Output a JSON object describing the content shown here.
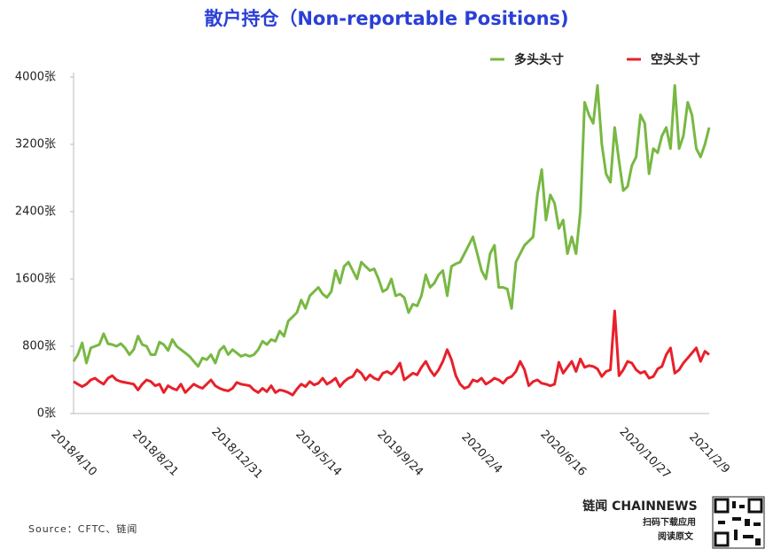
{
  "chart_data": {
    "type": "line",
    "title": "散户持仓（Non-reportable Positions)",
    "source": "Source：CFTC、链闻",
    "brand": {
      "name": "链闻 CHAINNEWS",
      "line1": "扫码下载应用",
      "line2": "阅读原文"
    },
    "categories": [
      "2018/4/10",
      null,
      null,
      null,
      null,
      null,
      null,
      null,
      null,
      null,
      null,
      null,
      null,
      null,
      null,
      null,
      null,
      null,
      null,
      "2018/8/21",
      null,
      null,
      null,
      null,
      null,
      null,
      null,
      null,
      null,
      null,
      null,
      null,
      null,
      null,
      null,
      null,
      null,
      null,
      "2018/12/31",
      null,
      null,
      null,
      null,
      null,
      null,
      null,
      null,
      null,
      null,
      null,
      null,
      null,
      null,
      null,
      null,
      null,
      null,
      "2019/5/14",
      null,
      null,
      null,
      null,
      null,
      null,
      null,
      null,
      null,
      null,
      null,
      null,
      null,
      null,
      null,
      null,
      null,
      null,
      "2019/9/24",
      null,
      null,
      null,
      null,
      null,
      null,
      null,
      null,
      null,
      null,
      null,
      null,
      null,
      null,
      null,
      null,
      null,
      null,
      "2020/2/4",
      null,
      null,
      null,
      null,
      null,
      null,
      null,
      null,
      null,
      null,
      null,
      null,
      null,
      null,
      null,
      null,
      null,
      null,
      "2020/6/16",
      null,
      null,
      null,
      null,
      null,
      null,
      null,
      null,
      null,
      null,
      null,
      null,
      null,
      null,
      null,
      null,
      null,
      null,
      "2020/10/27",
      null,
      null,
      null,
      null,
      null,
      null,
      null,
      null,
      null,
      null,
      null,
      null,
      null,
      null,
      "2021/2/9"
    ],
    "series": [
      {
        "name": "多头头寸",
        "color": "#78b843",
        "values": [
          620,
          700,
          840,
          600,
          780,
          800,
          820,
          950,
          830,
          820,
          800,
          830,
          780,
          700,
          760,
          920,
          820,
          800,
          700,
          700,
          850,
          820,
          750,
          880,
          800,
          760,
          720,
          680,
          620,
          560,
          660,
          640,
          700,
          600,
          750,
          800,
          700,
          760,
          720,
          680,
          700,
          680,
          700,
          760,
          860,
          820,
          880,
          860,
          980,
          920,
          1100,
          1150,
          1200,
          1350,
          1250,
          1400,
          1450,
          1500,
          1420,
          1380,
          1450,
          1700,
          1550,
          1750,
          1800,
          1700,
          1600,
          1800,
          1750,
          1700,
          1720,
          1600,
          1450,
          1480,
          1600,
          1400,
          1420,
          1380,
          1200,
          1300,
          1280,
          1400,
          1650,
          1500,
          1550,
          1650,
          1700,
          1400,
          1750,
          1780,
          1800,
          1900,
          2000,
          2100,
          1900,
          1700,
          1600,
          1900,
          2000,
          1500,
          1500,
          1480,
          1250,
          1800,
          1900,
          2000,
          2050,
          2100,
          2600,
          2900,
          2300,
          2600,
          2500,
          2200,
          2300,
          1900,
          2100,
          1900,
          2400,
          3700,
          3550,
          3450,
          3900,
          3200,
          2850,
          2750,
          3400,
          3000,
          2650,
          2700,
          2950,
          3050,
          3550,
          3450,
          2850,
          3150,
          3100,
          3300,
          3400,
          3150,
          3900,
          3150,
          3300,
          3700,
          3550,
          3150,
          3050,
          3200,
          3400
        ]
      },
      {
        "name": "空头头寸",
        "color": "#e8202a",
        "values": [
          380,
          350,
          320,
          350,
          400,
          420,
          380,
          350,
          420,
          450,
          400,
          380,
          370,
          360,
          350,
          280,
          350,
          400,
          380,
          330,
          350,
          250,
          330,
          300,
          280,
          350,
          250,
          300,
          350,
          320,
          300,
          350,
          400,
          330,
          300,
          280,
          270,
          300,
          370,
          350,
          340,
          330,
          280,
          250,
          300,
          260,
          330,
          250,
          280,
          270,
          250,
          220,
          290,
          350,
          320,
          380,
          340,
          360,
          420,
          350,
          380,
          420,
          320,
          380,
          420,
          440,
          520,
          480,
          400,
          460,
          420,
          400,
          480,
          500,
          470,
          520,
          600,
          400,
          440,
          480,
          460,
          550,
          620,
          520,
          450,
          520,
          620,
          760,
          640,
          450,
          350,
          300,
          320,
          400,
          380,
          420,
          350,
          380,
          420,
          400,
          360,
          420,
          440,
          500,
          620,
          520,
          330,
          380,
          400,
          360,
          350,
          330,
          350,
          610,
          480,
          550,
          620,
          500,
          650,
          550,
          570,
          560,
          530,
          440,
          500,
          520,
          1220,
          450,
          520,
          620,
          600,
          520,
          480,
          500,
          420,
          440,
          530,
          560,
          700,
          780,
          480,
          520,
          600,
          660,
          720,
          780,
          620,
          740,
          700
        ]
      }
    ],
    "ylim": [
      0,
      4000
    ],
    "yticks": [
      {
        "value": 0,
        "label": "0张"
      },
      {
        "value": 800,
        "label": "800张"
      },
      {
        "value": 1600,
        "label": "1600张"
      },
      {
        "value": 2400,
        "label": "2400张"
      },
      {
        "value": 3200,
        "label": "3200张"
      },
      {
        "value": 4000,
        "label": "4000张"
      }
    ],
    "grid": false
  }
}
